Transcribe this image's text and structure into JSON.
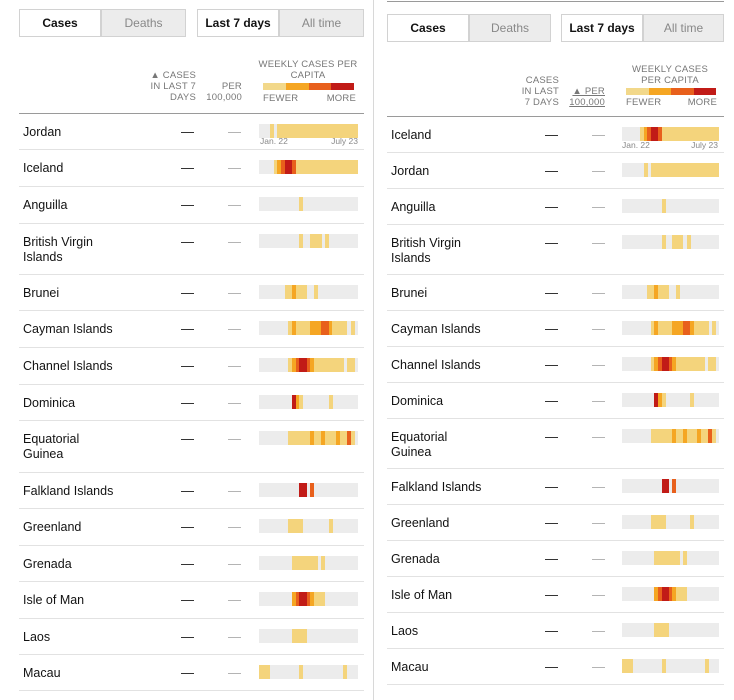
{
  "toggles": {
    "cases": "Cases",
    "deaths": "Deaths",
    "last7": "Last 7 days",
    "alltime": "All time"
  },
  "headers": {
    "cases_left": "▲ CASES IN LAST 7 DAYS",
    "cases_right": "CASES IN LAST 7 DAYS",
    "per_left": "PER 100,000",
    "per_right": "▲ PER 100,000",
    "weekly": "WEEKLY CASES PER CAPITA",
    "fewer": "FEWER",
    "more": "MORE"
  },
  "legend_colors": [
    "#f2d88a",
    "#f5a623",
    "#e8601c",
    "#c11b17"
  ],
  "dates": {
    "start": "Jan. 22",
    "end": "July 23"
  },
  "dash": "—",
  "colors": {
    "bg": "#ececec",
    "lvl1": "#f4d47c",
    "lvl2": "#f5a623",
    "lvl3": "#e8601c",
    "lvl4": "#c11b17"
  },
  "left_table": [
    {
      "name": "Jordan",
      "cases": "—",
      "per": "—",
      "weekly": [
        0,
        0,
        0,
        1,
        0,
        1,
        1,
        1,
        1,
        1,
        1,
        1,
        1,
        1,
        1,
        1,
        1,
        1,
        1,
        1,
        1,
        1,
        1,
        1,
        1,
        1,
        1
      ]
    },
    {
      "name": "Iceland",
      "cases": "—",
      "per": "—",
      "weekly": [
        0,
        0,
        0,
        0,
        1,
        2,
        3,
        4,
        4,
        3,
        1,
        1,
        1,
        1,
        1,
        1,
        1,
        1,
        1,
        1,
        1,
        1,
        1,
        1,
        1,
        1,
        1
      ]
    },
    {
      "name": "Anguilla",
      "cases": "—",
      "per": "—",
      "weekly": [
        0,
        0,
        0,
        0,
        0,
        0,
        0,
        0,
        0,
        0,
        0,
        1,
        0,
        0,
        0,
        0,
        0,
        0,
        0,
        0,
        0,
        0,
        0,
        0,
        0,
        0,
        0
      ]
    },
    {
      "name": "British Virgin Islands",
      "cases": "—",
      "per": "—",
      "weekly": [
        0,
        0,
        0,
        0,
        0,
        0,
        0,
        0,
        0,
        0,
        0,
        1,
        0,
        0,
        1,
        1,
        1,
        0,
        1,
        0,
        0,
        0,
        0,
        0,
        0,
        0,
        0
      ]
    },
    {
      "name": "Brunei",
      "cases": "—",
      "per": "—",
      "weekly": [
        0,
        0,
        0,
        0,
        0,
        0,
        0,
        1,
        1,
        2,
        1,
        1,
        1,
        0,
        0,
        1,
        0,
        0,
        0,
        0,
        0,
        0,
        0,
        0,
        0,
        0,
        0
      ]
    },
    {
      "name": "Cayman Islands",
      "cases": "—",
      "per": "—",
      "weekly": [
        0,
        0,
        0,
        0,
        0,
        0,
        0,
        0,
        1,
        2,
        1,
        1,
        1,
        1,
        2,
        2,
        2,
        3,
        3,
        2,
        1,
        1,
        1,
        1,
        0,
        1,
        0
      ]
    },
    {
      "name": "Channel Islands",
      "cases": "—",
      "per": "—",
      "weekly": [
        0,
        0,
        0,
        0,
        0,
        0,
        0,
        0,
        1,
        2,
        3,
        4,
        4,
        3,
        2,
        1,
        1,
        1,
        1,
        1,
        1,
        1,
        1,
        0,
        1,
        1,
        0
      ]
    },
    {
      "name": "Dominica",
      "cases": "—",
      "per": "—",
      "weekly": [
        0,
        0,
        0,
        0,
        0,
        0,
        0,
        0,
        0,
        4,
        2,
        1,
        0,
        0,
        0,
        0,
        0,
        0,
        0,
        1,
        0,
        0,
        0,
        0,
        0,
        0,
        0
      ]
    },
    {
      "name": "Equatorial Guinea",
      "cases": "—",
      "per": "—",
      "weekly": [
        0,
        0,
        0,
        0,
        0,
        0,
        0,
        0,
        1,
        1,
        1,
        1,
        1,
        1,
        2,
        1,
        1,
        2,
        1,
        1,
        1,
        2,
        1,
        1,
        3,
        1,
        0
      ]
    },
    {
      "name": "Falkland Islands",
      "cases": "—",
      "per": "—",
      "weekly": [
        0,
        0,
        0,
        0,
        0,
        0,
        0,
        0,
        0,
        0,
        0,
        4,
        4,
        0,
        3,
        0,
        0,
        0,
        0,
        0,
        0,
        0,
        0,
        0,
        0,
        0,
        0
      ]
    },
    {
      "name": "Greenland",
      "cases": "—",
      "per": "—",
      "weekly": [
        0,
        0,
        0,
        0,
        0,
        0,
        0,
        0,
        1,
        1,
        1,
        1,
        0,
        0,
        0,
        0,
        0,
        0,
        0,
        1,
        0,
        0,
        0,
        0,
        0,
        0,
        0
      ]
    },
    {
      "name": "Grenada",
      "cases": "—",
      "per": "—",
      "weekly": [
        0,
        0,
        0,
        0,
        0,
        0,
        0,
        0,
        0,
        1,
        1,
        1,
        1,
        1,
        1,
        1,
        0,
        1,
        0,
        0,
        0,
        0,
        0,
        0,
        0,
        0,
        0
      ]
    },
    {
      "name": "Isle of Man",
      "cases": "—",
      "per": "—",
      "weekly": [
        0,
        0,
        0,
        0,
        0,
        0,
        0,
        0,
        0,
        2,
        3,
        4,
        4,
        3,
        2,
        1,
        1,
        1,
        0,
        0,
        0,
        0,
        0,
        0,
        0,
        0,
        0
      ]
    },
    {
      "name": "Laos",
      "cases": "—",
      "per": "—",
      "weekly": [
        0,
        0,
        0,
        0,
        0,
        0,
        0,
        0,
        0,
        1,
        1,
        1,
        1,
        0,
        0,
        0,
        0,
        0,
        0,
        0,
        0,
        0,
        0,
        0,
        0,
        0,
        0
      ]
    },
    {
      "name": "Macau",
      "cases": "—",
      "per": "—",
      "weekly": [
        1,
        1,
        1,
        0,
        0,
        0,
        0,
        0,
        0,
        0,
        0,
        1,
        0,
        0,
        0,
        0,
        0,
        0,
        0,
        0,
        0,
        0,
        0,
        1,
        0,
        0,
        0
      ]
    }
  ],
  "right_table": [
    {
      "name": "Iceland",
      "cases": "—",
      "per": "—",
      "weekly": [
        0,
        0,
        0,
        0,
        0,
        1,
        2,
        3,
        4,
        4,
        3,
        1,
        1,
        1,
        1,
        1,
        1,
        1,
        1,
        1,
        1,
        1,
        1,
        1,
        1,
        1,
        1
      ]
    },
    {
      "name": "Jordan",
      "cases": "—",
      "per": "—",
      "weekly": [
        0,
        0,
        0,
        0,
        0,
        0,
        1,
        0,
        1,
        1,
        1,
        1,
        1,
        1,
        1,
        1,
        1,
        1,
        1,
        1,
        1,
        1,
        1,
        1,
        1,
        1,
        1
      ]
    },
    {
      "name": "Anguilla",
      "cases": "—",
      "per": "—",
      "weekly": [
        0,
        0,
        0,
        0,
        0,
        0,
        0,
        0,
        0,
        0,
        0,
        1,
        0,
        0,
        0,
        0,
        0,
        0,
        0,
        0,
        0,
        0,
        0,
        0,
        0,
        0,
        0
      ]
    },
    {
      "name": "British Virgin Islands",
      "cases": "—",
      "per": "—",
      "weekly": [
        0,
        0,
        0,
        0,
        0,
        0,
        0,
        0,
        0,
        0,
        0,
        1,
        0,
        0,
        1,
        1,
        1,
        0,
        1,
        0,
        0,
        0,
        0,
        0,
        0,
        0,
        0
      ]
    },
    {
      "name": "Brunei",
      "cases": "—",
      "per": "—",
      "weekly": [
        0,
        0,
        0,
        0,
        0,
        0,
        0,
        1,
        1,
        2,
        1,
        1,
        1,
        0,
        0,
        1,
        0,
        0,
        0,
        0,
        0,
        0,
        0,
        0,
        0,
        0,
        0
      ]
    },
    {
      "name": "Cayman Islands",
      "cases": "—",
      "per": "—",
      "weekly": [
        0,
        0,
        0,
        0,
        0,
        0,
        0,
        0,
        1,
        2,
        1,
        1,
        1,
        1,
        2,
        2,
        2,
        3,
        3,
        2,
        1,
        1,
        1,
        1,
        0,
        1,
        0
      ]
    },
    {
      "name": "Channel Islands",
      "cases": "—",
      "per": "—",
      "weekly": [
        0,
        0,
        0,
        0,
        0,
        0,
        0,
        0,
        1,
        2,
        3,
        4,
        4,
        3,
        2,
        1,
        1,
        1,
        1,
        1,
        1,
        1,
        1,
        0,
        1,
        1,
        0
      ]
    },
    {
      "name": "Dominica",
      "cases": "—",
      "per": "—",
      "weekly": [
        0,
        0,
        0,
        0,
        0,
        0,
        0,
        0,
        0,
        4,
        2,
        1,
        0,
        0,
        0,
        0,
        0,
        0,
        0,
        1,
        0,
        0,
        0,
        0,
        0,
        0,
        0
      ]
    },
    {
      "name": "Equatorial Guinea",
      "cases": "—",
      "per": "—",
      "weekly": [
        0,
        0,
        0,
        0,
        0,
        0,
        0,
        0,
        1,
        1,
        1,
        1,
        1,
        1,
        2,
        1,
        1,
        2,
        1,
        1,
        1,
        2,
        1,
        1,
        3,
        1,
        0
      ]
    },
    {
      "name": "Falkland Islands",
      "cases": "—",
      "per": "—",
      "weekly": [
        0,
        0,
        0,
        0,
        0,
        0,
        0,
        0,
        0,
        0,
        0,
        4,
        4,
        0,
        3,
        0,
        0,
        0,
        0,
        0,
        0,
        0,
        0,
        0,
        0,
        0,
        0
      ]
    },
    {
      "name": "Greenland",
      "cases": "—",
      "per": "—",
      "weekly": [
        0,
        0,
        0,
        0,
        0,
        0,
        0,
        0,
        1,
        1,
        1,
        1,
        0,
        0,
        0,
        0,
        0,
        0,
        0,
        1,
        0,
        0,
        0,
        0,
        0,
        0,
        0
      ]
    },
    {
      "name": "Grenada",
      "cases": "—",
      "per": "—",
      "weekly": [
        0,
        0,
        0,
        0,
        0,
        0,
        0,
        0,
        0,
        1,
        1,
        1,
        1,
        1,
        1,
        1,
        0,
        1,
        0,
        0,
        0,
        0,
        0,
        0,
        0,
        0,
        0
      ]
    },
    {
      "name": "Isle of Man",
      "cases": "—",
      "per": "—",
      "weekly": [
        0,
        0,
        0,
        0,
        0,
        0,
        0,
        0,
        0,
        2,
        3,
        4,
        4,
        3,
        2,
        1,
        1,
        1,
        0,
        0,
        0,
        0,
        0,
        0,
        0,
        0,
        0
      ]
    },
    {
      "name": "Laos",
      "cases": "—",
      "per": "—",
      "weekly": [
        0,
        0,
        0,
        0,
        0,
        0,
        0,
        0,
        0,
        1,
        1,
        1,
        1,
        0,
        0,
        0,
        0,
        0,
        0,
        0,
        0,
        0,
        0,
        0,
        0,
        0,
        0
      ]
    },
    {
      "name": "Macau",
      "cases": "—",
      "per": "—",
      "weekly": [
        1,
        1,
        1,
        0,
        0,
        0,
        0,
        0,
        0,
        0,
        0,
        1,
        0,
        0,
        0,
        0,
        0,
        0,
        0,
        0,
        0,
        0,
        0,
        1,
        0,
        0,
        0
      ]
    }
  ]
}
